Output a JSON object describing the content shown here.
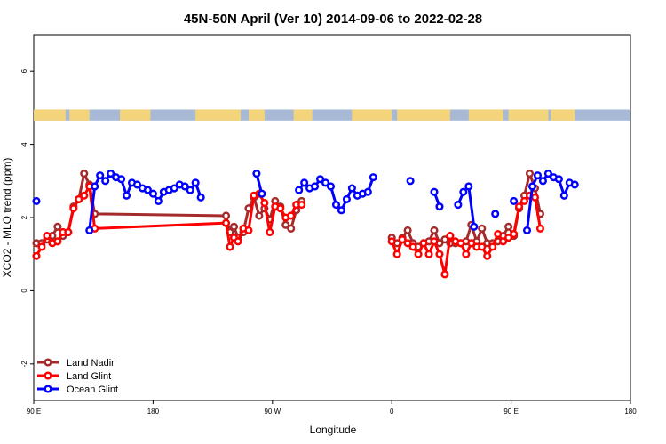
{
  "chart_data": {
    "type": "line",
    "title": "45N-50N April (Ver 10)   2014-09-06 to 2022-02-28",
    "xlabel": "Longitude",
    "ylabel": "XCO2 - MLO trend (ppm)",
    "xlim": [
      90,
      450
    ],
    "ylim": [
      -3,
      7
    ],
    "x_ticks": [
      {
        "value": 90,
        "label": "90 E"
      },
      {
        "value": 180,
        "label": "180"
      },
      {
        "value": 270,
        "label": "90 W"
      },
      {
        "value": 360,
        "label": "0"
      },
      {
        "value": 450,
        "label": "90 E"
      },
      {
        "value": 540,
        "label": "180"
      }
    ],
    "xlim_display": [
      90,
      540
    ],
    "y_ticks": [
      {
        "value": -2,
        "label": "-2"
      },
      {
        "value": 0,
        "label": "0"
      },
      {
        "value": 2,
        "label": "2"
      },
      {
        "value": 4,
        "label": "4"
      },
      {
        "value": 6,
        "label": "6"
      }
    ],
    "grid": false,
    "legend_position": "bottom-left",
    "land_sea_band": {
      "y_from": 4.65,
      "y_to": 4.95,
      "land_color": "#f4d47a",
      "ocean_color": "#a8b9d6"
    },
    "series": [
      {
        "name": "Land Nadir",
        "color": "#a52a2a",
        "points": [
          [
            92,
            1.3
          ],
          [
            96,
            1.3
          ],
          [
            100,
            1.4
          ],
          [
            104,
            1.5
          ],
          [
            108,
            1.75
          ],
          [
            112,
            1.5
          ],
          [
            116,
            1.6
          ],
          [
            120,
            2.3
          ],
          [
            124,
            2.5
          ],
          [
            128,
            3.2
          ],
          [
            132,
            2.9
          ],
          [
            136,
            2.1
          ],
          [
            235,
            2.05
          ],
          [
            238,
            1.6
          ],
          [
            241,
            1.75
          ],
          [
            244,
            1.45
          ],
          [
            248,
            1.6
          ],
          [
            252,
            2.25
          ],
          [
            256,
            2.55
          ],
          [
            260,
            2.05
          ],
          [
            264,
            2.25
          ],
          [
            268,
            1.95
          ],
          [
            272,
            2.45
          ],
          [
            276,
            2.3
          ],
          [
            280,
            1.8
          ],
          [
            284,
            1.7
          ],
          [
            288,
            2.2
          ],
          [
            292,
            2.45
          ],
          [
            296,
            null
          ],
          [
            360,
            1.45
          ],
          [
            364,
            1.3
          ],
          [
            368,
            1.45
          ],
          [
            372,
            1.65
          ],
          [
            376,
            1.3
          ],
          [
            380,
            1.2
          ],
          [
            384,
            1.3
          ],
          [
            388,
            1.35
          ],
          [
            392,
            1.65
          ],
          [
            396,
            1.3
          ],
          [
            400,
            1.4
          ],
          [
            404,
            1.3
          ],
          [
            408,
            1.3
          ],
          [
            412,
            1.3
          ],
          [
            416,
            1.35
          ],
          [
            420,
            1.8
          ],
          [
            424,
            1.35
          ],
          [
            428,
            1.7
          ],
          [
            432,
            1.3
          ],
          [
            436,
            1.3
          ],
          [
            440,
            1.35
          ],
          [
            444,
            1.5
          ],
          [
            448,
            1.75
          ],
          [
            452,
            1.5
          ],
          [
            456,
            2.25
          ],
          [
            460,
            2.6
          ],
          [
            464,
            3.2
          ],
          [
            468,
            2.8
          ],
          [
            472,
            2.1
          ]
        ]
      },
      {
        "name": "Land Glint",
        "color": "#ff0000",
        "points": [
          [
            92,
            0.95
          ],
          [
            96,
            1.2
          ],
          [
            100,
            1.5
          ],
          [
            104,
            1.3
          ],
          [
            108,
            1.35
          ],
          [
            112,
            1.6
          ],
          [
            116,
            1.6
          ],
          [
            120,
            2.25
          ],
          [
            124,
            2.5
          ],
          [
            128,
            2.6
          ],
          [
            132,
            2.85
          ],
          [
            136,
            1.7
          ],
          [
            235,
            1.85
          ],
          [
            238,
            1.2
          ],
          [
            241,
            1.45
          ],
          [
            244,
            1.35
          ],
          [
            248,
            1.7
          ],
          [
            252,
            1.65
          ],
          [
            256,
            2.6
          ],
          [
            260,
            2.65
          ],
          [
            264,
            2.4
          ],
          [
            268,
            1.6
          ],
          [
            272,
            2.3
          ],
          [
            276,
            2.25
          ],
          [
            280,
            2.0
          ],
          [
            284,
            2.05
          ],
          [
            288,
            2.35
          ],
          [
            292,
            2.35
          ],
          [
            296,
            null
          ],
          [
            360,
            1.35
          ],
          [
            364,
            1.0
          ],
          [
            368,
            1.4
          ],
          [
            372,
            1.3
          ],
          [
            376,
            1.2
          ],
          [
            380,
            1.0
          ],
          [
            384,
            1.3
          ],
          [
            388,
            1.0
          ],
          [
            392,
            1.35
          ],
          [
            396,
            1.0
          ],
          [
            400,
            0.45
          ],
          [
            404,
            1.5
          ],
          [
            408,
            1.35
          ],
          [
            412,
            1.3
          ],
          [
            416,
            1.0
          ],
          [
            420,
            1.3
          ],
          [
            424,
            1.2
          ],
          [
            428,
            1.2
          ],
          [
            432,
            0.95
          ],
          [
            436,
            1.2
          ],
          [
            440,
            1.55
          ],
          [
            444,
            1.35
          ],
          [
            448,
            1.45
          ],
          [
            452,
            1.55
          ],
          [
            456,
            2.3
          ],
          [
            460,
            2.45
          ],
          [
            464,
            2.6
          ],
          [
            468,
            2.55
          ],
          [
            472,
            1.7
          ]
        ]
      },
      {
        "name": "Ocean Glint",
        "color": "#0000ff",
        "points": [
          [
            92,
            2.45
          ],
          [
            96,
            null
          ],
          [
            132,
            1.65
          ],
          [
            136,
            2.85
          ],
          [
            140,
            3.15
          ],
          [
            144,
            3.0
          ],
          [
            148,
            3.2
          ],
          [
            152,
            3.1
          ],
          [
            156,
            3.05
          ],
          [
            160,
            2.6
          ],
          [
            164,
            2.95
          ],
          [
            168,
            2.9
          ],
          [
            172,
            2.8
          ],
          [
            176,
            2.75
          ],
          [
            180,
            2.65
          ],
          [
            184,
            2.45
          ],
          [
            188,
            2.7
          ],
          [
            192,
            2.75
          ],
          [
            196,
            2.8
          ],
          [
            200,
            2.9
          ],
          [
            204,
            2.85
          ],
          [
            208,
            2.75
          ],
          [
            212,
            2.95
          ],
          [
            216,
            2.55
          ],
          [
            220,
            null
          ],
          [
            258,
            3.2
          ],
          [
            262,
            2.65
          ],
          [
            266,
            null
          ],
          [
            290,
            2.75
          ],
          [
            294,
            2.95
          ],
          [
            298,
            2.8
          ],
          [
            302,
            2.85
          ],
          [
            306,
            3.05
          ],
          [
            310,
            2.95
          ],
          [
            314,
            2.85
          ],
          [
            318,
            2.35
          ],
          [
            322,
            2.2
          ],
          [
            326,
            2.5
          ],
          [
            330,
            2.8
          ],
          [
            334,
            2.6
          ],
          [
            338,
            2.65
          ],
          [
            342,
            2.7
          ],
          [
            346,
            3.1
          ],
          [
            350,
            null
          ],
          [
            374,
            3.0
          ],
          [
            378,
            null
          ],
          [
            392,
            2.7
          ],
          [
            396,
            2.3
          ],
          [
            400,
            null
          ],
          [
            410,
            2.35
          ],
          [
            414,
            2.7
          ],
          [
            418,
            2.85
          ],
          [
            422,
            1.75
          ],
          [
            426,
            null
          ],
          [
            438,
            2.1
          ],
          [
            442,
            null
          ],
          [
            452,
            2.45
          ],
          [
            456,
            null
          ],
          [
            462,
            1.65
          ],
          [
            466,
            2.85
          ],
          [
            470,
            3.15
          ],
          [
            474,
            3.0
          ],
          [
            478,
            3.2
          ],
          [
            482,
            3.1
          ],
          [
            486,
            3.05
          ],
          [
            490,
            2.6
          ],
          [
            494,
            2.95
          ],
          [
            498,
            2.9
          ]
        ]
      }
    ]
  }
}
